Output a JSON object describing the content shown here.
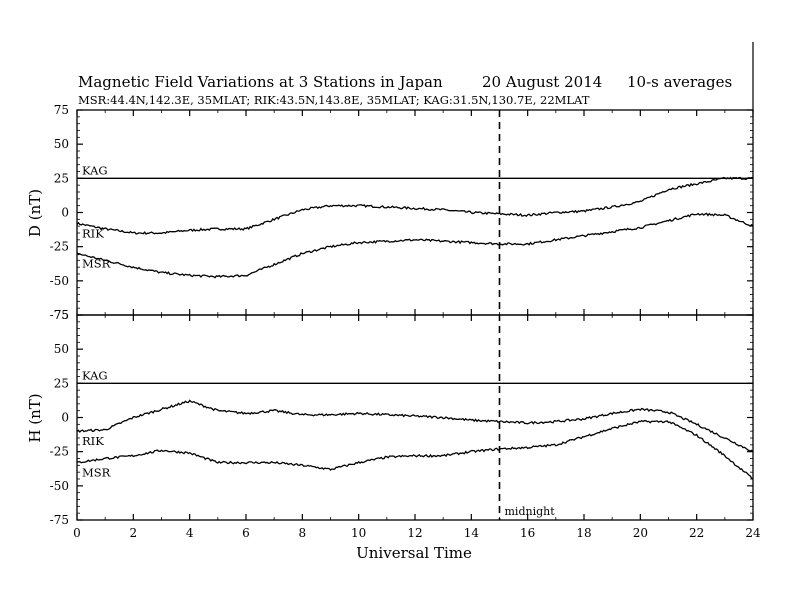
{
  "header": {
    "title": "Magnetic Field Variations at 3 Stations in Japan",
    "date": "20  August  2014",
    "averaging": "10-s averages",
    "stations_line": "MSR:44.4N,142.3E, 35MLAT;  RIK:43.5N,143.8E, 35MLAT;  KAG:31.5N,130.7E, 22MLAT"
  },
  "chart_data": [
    {
      "type": "line",
      "panel": "D",
      "ylabel": "D (nT)",
      "xlabel": "",
      "xlim": [
        0,
        24
      ],
      "ylim": [
        -75,
        75
      ],
      "yticks": [
        75,
        50,
        25,
        0,
        -25,
        -50,
        -75
      ],
      "xticks": [
        0,
        2,
        4,
        6,
        8,
        10,
        12,
        14,
        16,
        18,
        20,
        22,
        24
      ],
      "series": [
        {
          "name": "KAG",
          "x": [
            0,
            24
          ],
          "values": [
            25,
            25
          ]
        },
        {
          "name": "RIK",
          "x": [
            0,
            1,
            2,
            3,
            4,
            5,
            6,
            7,
            8,
            9,
            10,
            11,
            12,
            13,
            14,
            15,
            16,
            17,
            18,
            19,
            20,
            21,
            22,
            23,
            24
          ],
          "values": [
            -8,
            -12,
            -15,
            -15,
            -13,
            -12,
            -12,
            -5,
            2,
            5,
            5,
            4,
            3,
            2,
            0,
            -1,
            -2,
            0,
            1,
            4,
            8,
            17,
            21,
            25,
            25
          ]
        },
        {
          "name": "MSR",
          "x": [
            0,
            1,
            2,
            3,
            4,
            5,
            6,
            7,
            8,
            9,
            10,
            11,
            12,
            13,
            14,
            15,
            16,
            17,
            18,
            19,
            20,
            21,
            22,
            23,
            24
          ],
          "values": [
            -30,
            -35,
            -40,
            -44,
            -46,
            -47,
            -46,
            -38,
            -30,
            -25,
            -22,
            -21,
            -20,
            -21,
            -22,
            -23,
            -23,
            -20,
            -17,
            -14,
            -11,
            -6,
            -1,
            -2,
            -10
          ]
        }
      ],
      "labels": [
        "KAG",
        "RIK",
        "MSR"
      ]
    },
    {
      "type": "line",
      "panel": "H",
      "ylabel": "H (nT)",
      "xlabel": "Universal Time",
      "xlim": [
        0,
        24
      ],
      "ylim": [
        -75,
        75
      ],
      "yticks": [
        75,
        50,
        25,
        0,
        -25,
        -50,
        -75
      ],
      "xticks": [
        0,
        2,
        4,
        6,
        8,
        10,
        12,
        14,
        16,
        18,
        20,
        22,
        24
      ],
      "series": [
        {
          "name": "KAG",
          "x": [
            0,
            24
          ],
          "values": [
            25,
            25
          ]
        },
        {
          "name": "RIK",
          "x": [
            0,
            1,
            2,
            3,
            4,
            5,
            6,
            7,
            8,
            9,
            10,
            11,
            12,
            13,
            14,
            15,
            16,
            17,
            18,
            19,
            20,
            21,
            22,
            23,
            24
          ],
          "values": [
            -10,
            -9,
            0,
            6,
            12,
            5,
            3,
            5,
            2,
            2,
            3,
            2,
            1,
            0,
            -2,
            -3,
            -4,
            -3,
            -1,
            3,
            6,
            4,
            -5,
            -15,
            -25
          ]
        },
        {
          "name": "MSR",
          "x": [
            0,
            1,
            2,
            3,
            4,
            5,
            6,
            7,
            8,
            9,
            10,
            11,
            12,
            13,
            14,
            15,
            16,
            17,
            18,
            19,
            20,
            21,
            22,
            23,
            24
          ],
          "values": [
            -33,
            -30,
            -28,
            -24,
            -26,
            -33,
            -33,
            -33,
            -35,
            -38,
            -33,
            -29,
            -28,
            -28,
            -25,
            -23,
            -22,
            -20,
            -14,
            -8,
            -3,
            -3,
            -13,
            -28,
            -45
          ]
        }
      ],
      "labels": [
        "KAG",
        "RIK",
        "MSR"
      ]
    }
  ],
  "midnight": {
    "x": 15,
    "label": "midnight"
  }
}
